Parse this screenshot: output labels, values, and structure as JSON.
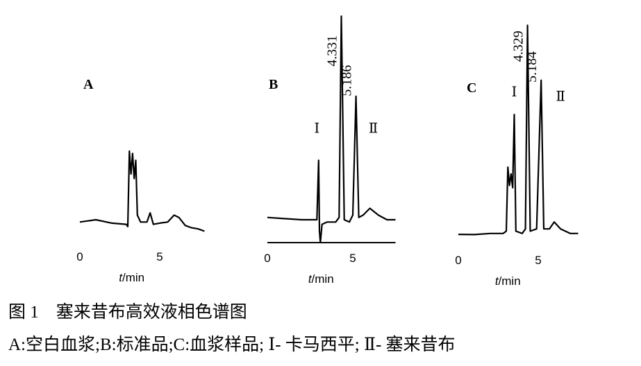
{
  "chart_data": [
    {
      "type": "line",
      "label": "A",
      "xlabel": "t/min",
      "xlim": [
        0,
        7.8
      ],
      "ylim": [
        0,
        100
      ],
      "xticks": [
        0,
        5
      ],
      "axis_line": false,
      "x": [
        0,
        1,
        2,
        2.9,
        3.0,
        3.1,
        3.2,
        3.3,
        3.4,
        3.5,
        3.6,
        3.8,
        4.2,
        4.4,
        4.6,
        5,
        5.5,
        5.9,
        6.2,
        6.6,
        7.0,
        7.4,
        7.8
      ],
      "values": [
        9,
        10,
        8.5,
        8,
        7,
        40,
        30,
        39,
        28,
        36,
        12,
        9,
        9,
        13,
        8,
        8.5,
        9,
        12,
        11,
        7.5,
        6.5,
        6,
        5
      ],
      "annotations": []
    },
    {
      "type": "line",
      "label": "B",
      "xlabel": "t/min",
      "xlim": [
        0,
        7.5
      ],
      "ylim": [
        0,
        100
      ],
      "xticks": [
        0,
        5
      ],
      "axis_line": true,
      "x": [
        0,
        1,
        2,
        2.9,
        3.0,
        3.05,
        3.1,
        3.2,
        3.5,
        4.0,
        4.2,
        4.331,
        4.5,
        4.8,
        5.0,
        5.186,
        5.35,
        5.6,
        6.0,
        6.5,
        7.0,
        7.5
      ],
      "values": [
        11,
        10.5,
        10,
        10,
        36,
        5,
        0,
        8,
        9,
        9,
        11,
        99,
        10,
        9,
        12,
        64,
        11,
        12,
        15,
        12,
        10,
        10
      ],
      "annotations": [
        {
          "text": "4.331",
          "x": 4.331,
          "y": 77,
          "vertical": true
        },
        {
          "text": "5.186",
          "x": 5.186,
          "y": 64,
          "vertical": true
        },
        {
          "text": "Ⅰ",
          "x": 2.9,
          "y": 48
        },
        {
          "text": "Ⅱ",
          "x": 6.2,
          "y": 48
        }
      ]
    },
    {
      "type": "line",
      "label": "C",
      "xlabel": "t/min",
      "xlim": [
        0,
        7.5
      ],
      "ylim": [
        0,
        100
      ],
      "xticks": [
        0,
        5
      ],
      "axis_line": false,
      "x": [
        0,
        1,
        2,
        2.8,
        3.0,
        3.1,
        3.2,
        3.3,
        3.4,
        3.5,
        3.6,
        4.0,
        4.2,
        4.329,
        4.5,
        4.9,
        5.184,
        5.35,
        5.7,
        6.0,
        6.4,
        7.0,
        7.5
      ],
      "values": [
        3.6,
        3.5,
        4,
        4,
        5,
        33,
        25,
        30,
        24,
        56,
        5,
        4,
        6,
        95,
        5,
        6,
        71,
        6,
        6,
        9,
        6,
        4,
        4
      ],
      "annotations": [
        {
          "text": "4.329",
          "x": 4.329,
          "y": 79,
          "vertical": true
        },
        {
          "text": "5.184",
          "x": 5.184,
          "y": 70,
          "vertical": true
        },
        {
          "text": "Ⅰ",
          "x": 3.5,
          "y": 64
        },
        {
          "text": "Ⅱ",
          "x": 6.4,
          "y": 62
        }
      ]
    }
  ],
  "caption": {
    "title": "图 1　塞来昔布高效液相色谱图",
    "legend": "A:空白血浆;B:标准品;C:血浆样品; Ⅰ- 卡马西平; Ⅱ- 塞来昔布"
  }
}
